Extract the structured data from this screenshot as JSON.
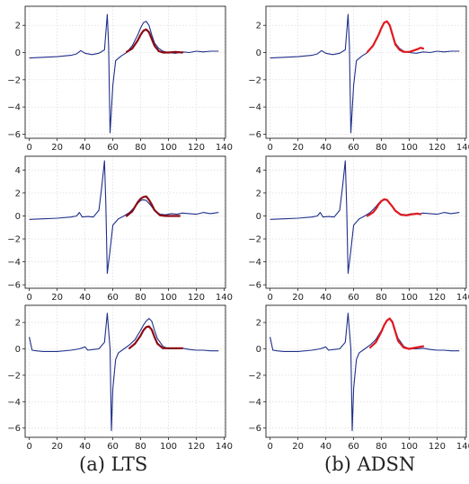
{
  "captions": [
    "(a) LTS",
    "(b) ADSN"
  ],
  "colors": {
    "signal": "#1f2f8a",
    "fit_dark": "#8b0a14",
    "fit_red": "#e0191f",
    "grid": "#d4d4d4"
  },
  "chart_data": [
    {
      "type": "line",
      "column": "(a) LTS",
      "row": 1,
      "xlim": [
        -3,
        141
      ],
      "ylim": [
        -6.3,
        3.4
      ],
      "xticks": [
        0,
        20,
        40,
        60,
        80,
        100,
        120,
        140
      ],
      "yticks": [
        -6,
        -4,
        -2,
        0,
        2
      ],
      "grid": true,
      "series": [
        {
          "role": "signal",
          "x": [
            0,
            10,
            20,
            30,
            34,
            37,
            40,
            45,
            50,
            54,
            56,
            57,
            58,
            60,
            62,
            66,
            70,
            74,
            78,
            80,
            82,
            84,
            86,
            88,
            90,
            93,
            96,
            100,
            105,
            110,
            115,
            120,
            125,
            130,
            136
          ],
          "y": [
            -0.4,
            -0.35,
            -0.3,
            -0.2,
            -0.1,
            0.15,
            -0.05,
            -0.15,
            -0.05,
            0.2,
            2.8,
            0.5,
            -5.9,
            -2.4,
            -0.6,
            -0.25,
            0.0,
            0.5,
            1.3,
            1.8,
            2.2,
            2.3,
            2.0,
            1.3,
            0.7,
            0.3,
            0.1,
            0.0,
            -0.05,
            0.05,
            0.0,
            0.1,
            0.05,
            0.1,
            0.1
          ]
        },
        {
          "role": "fit",
          "x": [
            70,
            74,
            78,
            80,
            82,
            84,
            86,
            88,
            90,
            93,
            96,
            100,
            105,
            110
          ],
          "y": [
            0.05,
            0.3,
            0.9,
            1.3,
            1.6,
            1.7,
            1.5,
            1.0,
            0.5,
            0.1,
            0.0,
            0.0,
            0.05,
            0.0
          ]
        }
      ]
    },
    {
      "type": "line",
      "column": "(b) ADSN",
      "row": 1,
      "xlim": [
        -3,
        141
      ],
      "ylim": [
        -6.3,
        3.4
      ],
      "xticks": [
        0,
        20,
        40,
        60,
        80,
        100,
        120,
        140
      ],
      "yticks": [
        -6,
        -4,
        -2,
        0,
        2
      ],
      "grid": true,
      "series": [
        {
          "role": "signal",
          "x": [
            0,
            10,
            20,
            30,
            34,
            37,
            40,
            45,
            50,
            54,
            56,
            57,
            58,
            60,
            62,
            66,
            70,
            74,
            78,
            80,
            82,
            84,
            86,
            88,
            90,
            93,
            96,
            100,
            105,
            110,
            115,
            120,
            125,
            130,
            136
          ],
          "y": [
            -0.4,
            -0.35,
            -0.3,
            -0.2,
            -0.1,
            0.15,
            -0.05,
            -0.15,
            -0.05,
            0.2,
            2.8,
            0.5,
            -5.9,
            -2.4,
            -0.6,
            -0.25,
            0.0,
            0.5,
            1.3,
            1.8,
            2.2,
            2.3,
            2.0,
            1.3,
            0.7,
            0.3,
            0.1,
            0.0,
            -0.05,
            0.05,
            0.0,
            0.1,
            0.05,
            0.1,
            0.1
          ]
        },
        {
          "role": "fit",
          "x": [
            70,
            74,
            78,
            80,
            82,
            84,
            86,
            88,
            90,
            93,
            96,
            100,
            103,
            106,
            108,
            110
          ],
          "y": [
            0.05,
            0.5,
            1.3,
            1.8,
            2.2,
            2.3,
            2.0,
            1.3,
            0.6,
            0.2,
            0.05,
            0.05,
            0.15,
            0.25,
            0.35,
            0.3
          ]
        }
      ]
    },
    {
      "type": "line",
      "column": "(a) LTS",
      "row": 2,
      "xlim": [
        -3,
        141
      ],
      "ylim": [
        -6.3,
        5.2
      ],
      "xticks": [
        0,
        20,
        40,
        60,
        80,
        100,
        120,
        140
      ],
      "yticks": [
        -6,
        -4,
        -2,
        0,
        2,
        4
      ],
      "grid": true,
      "series": [
        {
          "role": "signal",
          "x": [
            0,
            10,
            20,
            30,
            34,
            36,
            38,
            42,
            46,
            50,
            52,
            54,
            55,
            56,
            58,
            60,
            64,
            68,
            72,
            76,
            78,
            80,
            82,
            84,
            86,
            88,
            90,
            94,
            98,
            102,
            106,
            110,
            115,
            120,
            125,
            130,
            136
          ],
          "y": [
            -0.3,
            -0.25,
            -0.2,
            -0.1,
            0.0,
            0.3,
            -0.1,
            -0.05,
            -0.1,
            0.5,
            2.5,
            4.8,
            1.0,
            -5.0,
            -3.0,
            -0.8,
            -0.25,
            0.0,
            0.3,
            0.8,
            1.1,
            1.35,
            1.4,
            1.35,
            1.1,
            0.8,
            0.45,
            0.15,
            0.1,
            0.2,
            0.15,
            0.25,
            0.2,
            0.15,
            0.3,
            0.2,
            0.3
          ]
        },
        {
          "role": "fit",
          "x": [
            70,
            74,
            76,
            78,
            80,
            82,
            84,
            86,
            88,
            90,
            94,
            98,
            102,
            106,
            108
          ],
          "y": [
            0.0,
            0.4,
            0.8,
            1.2,
            1.5,
            1.65,
            1.7,
            1.4,
            1.0,
            0.5,
            0.05,
            0.0,
            0.0,
            0.0,
            0.0
          ]
        }
      ]
    },
    {
      "type": "line",
      "column": "(b) ADSN",
      "row": 2,
      "xlim": [
        -3,
        141
      ],
      "ylim": [
        -6.3,
        5.2
      ],
      "xticks": [
        0,
        20,
        40,
        60,
        80,
        100,
        120,
        140
      ],
      "yticks": [
        -6,
        -4,
        -2,
        0,
        2,
        4
      ],
      "grid": true,
      "series": [
        {
          "role": "signal",
          "x": [
            0,
            10,
            20,
            30,
            34,
            36,
            38,
            42,
            46,
            50,
            52,
            54,
            55,
            56,
            58,
            60,
            64,
            68,
            72,
            76,
            78,
            80,
            82,
            84,
            86,
            88,
            90,
            94,
            98,
            102,
            106,
            110,
            115,
            120,
            125,
            130,
            136
          ],
          "y": [
            -0.3,
            -0.25,
            -0.2,
            -0.1,
            0.0,
            0.3,
            -0.1,
            -0.05,
            -0.1,
            0.5,
            2.5,
            4.8,
            1.0,
            -5.0,
            -3.0,
            -0.8,
            -0.25,
            0.0,
            0.3,
            0.8,
            1.1,
            1.35,
            1.4,
            1.35,
            1.1,
            0.8,
            0.45,
            0.15,
            0.1,
            0.2,
            0.15,
            0.25,
            0.2,
            0.15,
            0.3,
            0.2,
            0.3
          ]
        },
        {
          "role": "fit",
          "x": [
            70,
            74,
            76,
            78,
            80,
            82,
            84,
            86,
            88,
            90,
            94,
            98,
            102,
            106,
            108
          ],
          "y": [
            0.0,
            0.3,
            0.6,
            1.0,
            1.3,
            1.45,
            1.4,
            1.1,
            0.8,
            0.45,
            0.1,
            0.05,
            0.15,
            0.2,
            0.15
          ]
        }
      ]
    },
    {
      "type": "line",
      "column": "(a) LTS",
      "row": 3,
      "xlim": [
        -3,
        141
      ],
      "ylim": [
        -6.7,
        3.3
      ],
      "xticks": [
        0,
        20,
        40,
        60,
        80,
        100,
        120,
        140
      ],
      "yticks": [
        -6,
        -4,
        -2,
        0,
        2
      ],
      "grid": true,
      "series": [
        {
          "role": "signal",
          "x": [
            0,
            2,
            5,
            10,
            20,
            30,
            36,
            40,
            42,
            46,
            50,
            54,
            56,
            58,
            59,
            60,
            62,
            64,
            68,
            72,
            76,
            80,
            82,
            84,
            86,
            88,
            90,
            92,
            96,
            100,
            105,
            110,
            115,
            120,
            125,
            130,
            136
          ],
          "y": [
            0.9,
            -0.1,
            -0.15,
            -0.2,
            -0.2,
            -0.1,
            0.0,
            0.15,
            -0.1,
            -0.05,
            0.0,
            0.5,
            2.7,
            0.0,
            -6.2,
            -3.0,
            -0.8,
            -0.3,
            0.0,
            0.3,
            0.7,
            1.4,
            1.8,
            2.1,
            2.3,
            2.1,
            1.4,
            0.8,
            0.2,
            0.0,
            0.0,
            0.05,
            -0.05,
            -0.1,
            -0.1,
            -0.15,
            -0.15
          ]
        },
        {
          "role": "fit",
          "x": [
            72,
            76,
            80,
            82,
            84,
            86,
            88,
            90,
            92,
            96,
            100,
            105,
            110
          ],
          "y": [
            0.05,
            0.4,
            1.0,
            1.4,
            1.65,
            1.7,
            1.45,
            0.9,
            0.4,
            0.05,
            0.05,
            0.05,
            0.05
          ]
        }
      ]
    },
    {
      "type": "line",
      "column": "(b) ADSN",
      "row": 3,
      "xlim": [
        -3,
        141
      ],
      "ylim": [
        -6.7,
        3.3
      ],
      "xticks": [
        0,
        20,
        40,
        60,
        80,
        100,
        120,
        140
      ],
      "yticks": [
        -6,
        -4,
        -2,
        0,
        2
      ],
      "grid": true,
      "series": [
        {
          "role": "signal",
          "x": [
            0,
            2,
            5,
            10,
            20,
            30,
            36,
            40,
            42,
            46,
            50,
            54,
            56,
            58,
            59,
            60,
            62,
            64,
            68,
            72,
            76,
            80,
            82,
            84,
            86,
            88,
            90,
            92,
            96,
            100,
            105,
            110,
            115,
            120,
            125,
            130,
            136
          ],
          "y": [
            0.9,
            -0.1,
            -0.15,
            -0.2,
            -0.2,
            -0.1,
            0.0,
            0.15,
            -0.1,
            -0.05,
            0.0,
            0.5,
            2.7,
            0.0,
            -6.2,
            -3.0,
            -0.8,
            -0.3,
            0.0,
            0.3,
            0.7,
            1.4,
            1.8,
            2.1,
            2.3,
            2.1,
            1.4,
            0.8,
            0.2,
            0.0,
            0.0,
            0.05,
            -0.05,
            -0.1,
            -0.1,
            -0.15,
            -0.15
          ]
        },
        {
          "role": "fit",
          "x": [
            72,
            76,
            80,
            82,
            84,
            86,
            88,
            90,
            92,
            96,
            100,
            105,
            110
          ],
          "y": [
            0.1,
            0.5,
            1.3,
            1.8,
            2.15,
            2.3,
            2.0,
            1.3,
            0.6,
            0.1,
            0.0,
            0.1,
            0.2
          ]
        }
      ]
    }
  ]
}
